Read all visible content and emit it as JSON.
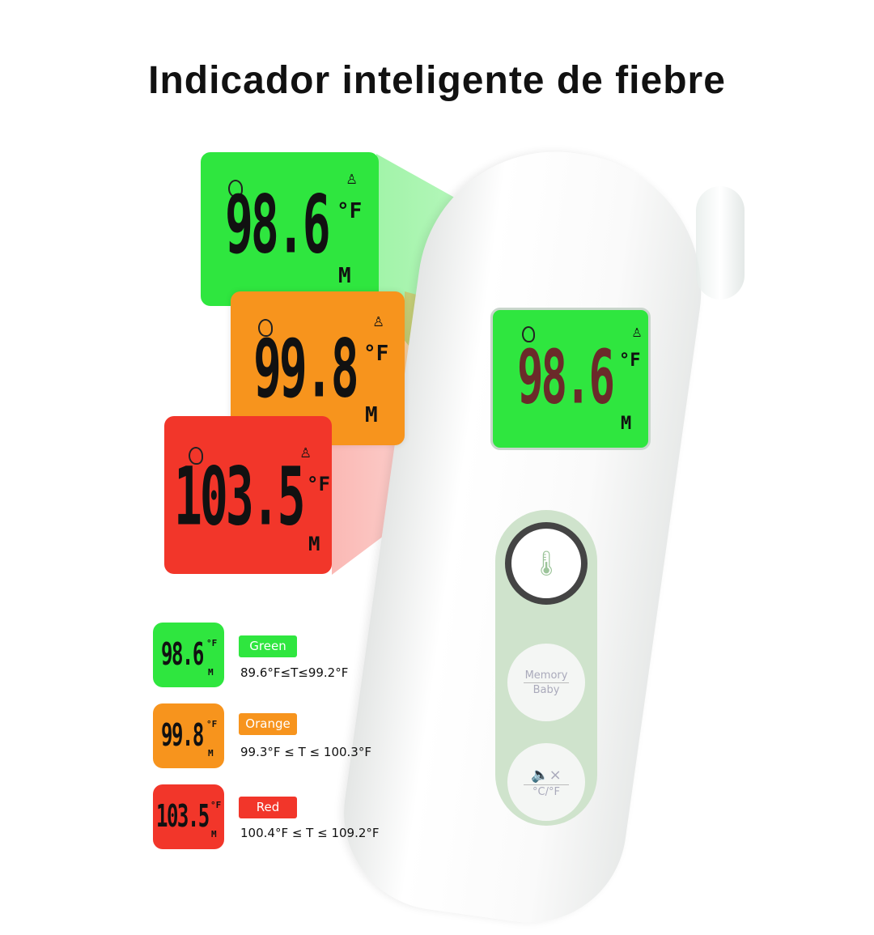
{
  "title": "Indicador inteligente de fiebre",
  "colors": {
    "green": "#2fe63f",
    "orange": "#f7941d",
    "red": "#f2362a",
    "button_ring": "#cfe3cc"
  },
  "displays": [
    {
      "color": "green",
      "reading": "98.6",
      "unit": "°F",
      "mode": "M"
    },
    {
      "color": "orange",
      "reading": "99.8",
      "unit": "°F",
      "mode": "M"
    },
    {
      "color": "red",
      "reading": "103.5",
      "unit": "°F",
      "mode": "M"
    }
  ],
  "device": {
    "screen_reading": "98.6",
    "screen_unit": "°F",
    "screen_mode": "M",
    "buttons": [
      {
        "icon": "thermometer-icon"
      },
      {
        "label_top": "Memory",
        "label_bottom": "Baby"
      },
      {
        "icon": "mute-icon",
        "label_bottom": "°C/°F"
      }
    ]
  },
  "legend": [
    {
      "label": "Green",
      "reading": "98.6",
      "range": "89.6°F≤T≤99.2°F"
    },
    {
      "label": "Orange",
      "reading": "99.8",
      "range": "99.3°F ≤ T ≤ 100.3°F"
    },
    {
      "label": "Red",
      "reading": "103.5",
      "range": "100.4°F ≤ T ≤ 109.2°F"
    }
  ]
}
